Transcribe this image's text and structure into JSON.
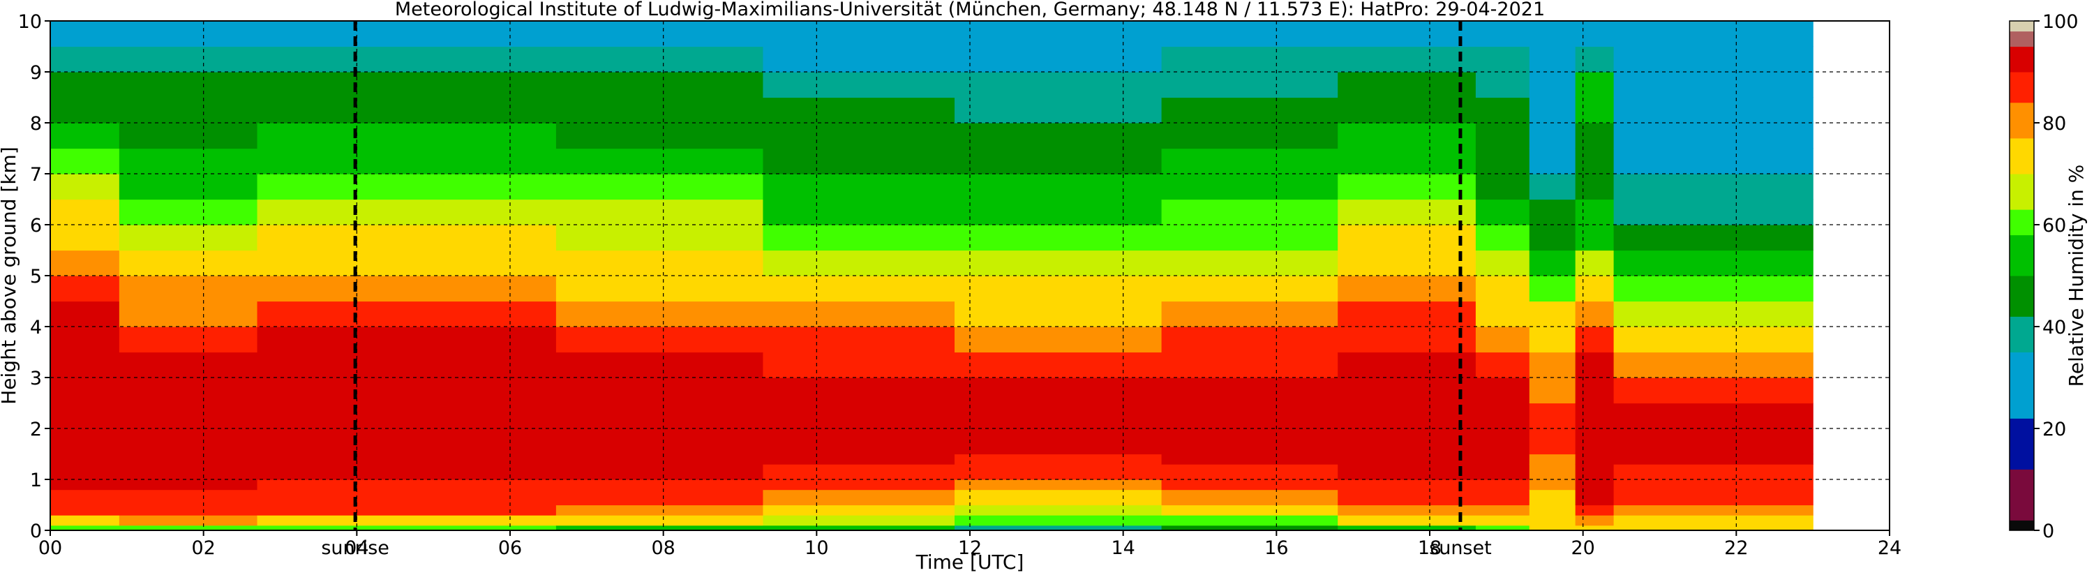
{
  "chart_data": {
    "type": "heatmap",
    "title": "Meteorological Institute of Ludwig-Maximilians-Universität (München, Germany; 48.148 N / 11.573 E):    HatPro: 29-04-2021",
    "xlabel": "Time [UTC]",
    "ylabel": "Height above ground [km]",
    "xlim": [
      0,
      24
    ],
    "ylim": [
      0,
      10
    ],
    "x_ticks": [
      "00",
      "02",
      "04",
      "06",
      "08",
      "10",
      "12",
      "14",
      "16",
      "18",
      "20",
      "22",
      "24"
    ],
    "y_ticks": [
      "0",
      "1",
      "2",
      "3",
      "4",
      "5",
      "6",
      "7",
      "8",
      "9",
      "10"
    ],
    "grid": true,
    "data_end_hour": 23.0,
    "annotations": [
      {
        "label": "sunrise",
        "x": 3.98
      },
      {
        "label": "sunset",
        "x": 18.4
      }
    ],
    "colorbar": {
      "label": "Relative Humidity in %",
      "range": [
        0,
        100
      ],
      "ticks": [
        "0",
        "20",
        "40",
        "60",
        "80",
        "100"
      ],
      "bands": [
        {
          "from": 0,
          "to": 2,
          "color": "#0a0a0a"
        },
        {
          "from": 2,
          "to": 12,
          "color": "#7a0a3c"
        },
        {
          "from": 12,
          "to": 22,
          "color": "#0010a0"
        },
        {
          "from": 22,
          "to": 35,
          "color": "#00a0d0"
        },
        {
          "from": 35,
          "to": 42,
          "color": "#00a890"
        },
        {
          "from": 42,
          "to": 50,
          "color": "#009000"
        },
        {
          "from": 50,
          "to": 58,
          "color": "#00c000"
        },
        {
          "from": 58,
          "to": 63,
          "color": "#40ff00"
        },
        {
          "from": 63,
          "to": 70,
          "color": "#c8f000"
        },
        {
          "from": 70,
          "to": 77,
          "color": "#ffd800"
        },
        {
          "from": 77,
          "to": 84,
          "color": "#ff9000"
        },
        {
          "from": 84,
          "to": 90,
          "color": "#ff2000"
        },
        {
          "from": 90,
          "to": 95,
          "color": "#d80000"
        },
        {
          "from": 95,
          "to": 98,
          "color": "#b06060"
        },
        {
          "from": 98,
          "to": 100,
          "color": "#d8d0b0"
        }
      ]
    },
    "heights_km": [
      0.1,
      0.3,
      0.5,
      0.8,
      1.0,
      1.3,
      1.5,
      2.0,
      2.5,
      3.0,
      3.5,
      4.0,
      4.5,
      5.0,
      5.5,
      6.0,
      6.5,
      7.0,
      7.5,
      8.0,
      8.5,
      9.0,
      9.5,
      10.0
    ],
    "profiles": [
      {
        "t": 0.0,
        "rh": [
          60,
          75,
          85,
          89,
          91,
          91,
          92,
          92,
          92,
          92,
          92,
          92,
          90,
          86,
          80,
          74,
          70,
          64,
          58,
          52,
          48,
          45,
          38,
          34
        ]
      },
      {
        "t": 0.9,
        "rh": [
          62,
          78,
          84,
          88,
          90,
          91,
          91,
          92,
          92,
          92,
          92,
          89,
          83,
          77,
          72,
          66,
          60,
          55,
          50,
          48,
          47,
          45,
          38,
          34
        ]
      },
      {
        "t": 2.7,
        "rh": [
          62,
          76,
          84,
          86,
          88,
          90,
          91,
          92,
          92,
          92,
          92,
          91,
          87,
          80,
          74,
          70,
          66,
          62,
          56,
          52,
          48,
          45,
          38,
          34
        ]
      },
      {
        "t": 6.6,
        "rh": [
          50,
          70,
          78,
          86,
          88,
          90,
          91,
          92,
          92,
          92,
          91,
          88,
          82,
          76,
          72,
          68,
          64,
          58,
          52,
          48,
          45,
          43,
          37,
          34
        ]
      },
      {
        "t": 9.3,
        "rh": [
          52,
          66,
          76,
          82,
          86,
          88,
          90,
          91,
          91,
          91,
          88,
          84,
          78,
          72,
          68,
          62,
          56,
          52,
          47,
          45,
          42,
          40,
          34,
          30
        ]
      },
      {
        "t": 11.8,
        "rh": [
          40,
          58,
          66,
          75,
          82,
          84,
          88,
          90,
          91,
          90,
          86,
          82,
          76,
          70,
          64,
          58,
          54,
          50,
          46,
          44,
          40,
          38,
          32,
          28
        ]
      },
      {
        "t": 14.5,
        "rh": [
          48,
          62,
          72,
          82,
          86,
          88,
          90,
          91,
          91,
          90,
          88,
          84,
          78,
          72,
          66,
          62,
          58,
          54,
          50,
          46,
          43,
          41,
          36,
          33
        ]
      },
      {
        "t": 16.8,
        "rh": [
          52,
          70,
          80,
          86,
          88,
          90,
          91,
          92,
          92,
          92,
          91,
          88,
          84,
          78,
          74,
          70,
          66,
          62,
          56,
          50,
          46,
          44,
          38,
          34
        ]
      },
      {
        "t": 18.6,
        "rh": [
          62,
          74,
          82,
          86,
          88,
          90,
          91,
          91,
          91,
          90,
          86,
          82,
          76,
          70,
          64,
          58,
          52,
          48,
          46,
          44,
          42,
          40,
          35,
          32
        ]
      },
      {
        "t": 19.3,
        "rh": [
          70,
          72,
          74,
          76,
          78,
          80,
          82,
          84,
          84,
          82,
          80,
          76,
          70,
          62,
          55,
          48,
          42,
          38,
          34,
          32,
          30,
          30,
          30,
          30
        ]
      },
      {
        "t": 19.9,
        "rh": [
          72,
          80,
          86,
          90,
          91,
          92,
          92,
          93,
          92,
          92,
          91,
          88,
          82,
          74,
          64,
          56,
          50,
          46,
          44,
          48,
          52,
          50,
          40,
          34
        ]
      },
      {
        "t": 20.4,
        "rh": [
          72,
          76,
          80,
          84,
          86,
          88,
          90,
          91,
          90,
          86,
          80,
          74,
          68,
          60,
          52,
          46,
          40,
          36,
          34,
          33,
          32,
          31,
          31,
          30
        ]
      },
      {
        "t": 23.0,
        "rh": [
          72,
          76,
          80,
          84,
          86,
          88,
          90,
          91,
          90,
          86,
          80,
          74,
          68,
          60,
          52,
          46,
          40,
          36,
          34,
          33,
          32,
          31,
          31,
          30
        ]
      }
    ]
  }
}
